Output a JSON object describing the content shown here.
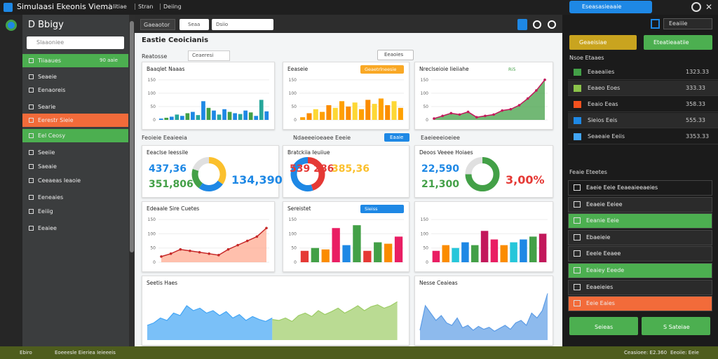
{
  "window": {
    "title": "Simulaasi Ekeonis Viema",
    "menu": [
      "Iitiae",
      "Stran",
      "Deiing"
    ],
    "account": "Eseasasieaaie"
  },
  "sidebar": {
    "title": "D Bbigy",
    "search": "Slaaoniee",
    "items": [
      {
        "label": "Tiiaaues",
        "value": "90 aaie",
        "style": "green"
      },
      {
        "label": "Seaeie",
        "style": "plain"
      },
      {
        "label": "Eenaoreis",
        "style": "plain"
      },
      {
        "label": "Searie",
        "style": "plain"
      },
      {
        "label": "Eerestr Sieie",
        "style": "orange"
      },
      {
        "label": "Eel Ceosy",
        "style": "green"
      },
      {
        "label": "Seeiie",
        "style": "plain"
      },
      {
        "label": "Saeaie",
        "style": "plain"
      },
      {
        "label": "Ceeaeas Ieaoie",
        "style": "plain"
      },
      {
        "label": "Eeneaies",
        "style": "plain"
      },
      {
        "label": "Eeiiig",
        "style": "plain"
      },
      {
        "label": "Eeaiee",
        "style": "plain"
      }
    ]
  },
  "toolbar": {
    "button": "Gaeaotor",
    "search": "Seaa",
    "dropdown": "Dsiio"
  },
  "section": {
    "title": "Eastie Ceoicianis",
    "filter": "Reatosse",
    "dropdown": "Ceaeresi",
    "button": "Eeaoies",
    "row_headers": [
      "Feoieie Eeaieeia",
      "Ndaeeeioeaee Eeeie",
      "Eaeieeeioeiee"
    ],
    "row_button": "Eaaie"
  },
  "cards": [
    {
      "title": "Baaqlet Naaas",
      "chart": {
        "type": "bar",
        "ylim": [
          0,
          160
        ],
        "yticks": [
          0,
          50,
          100,
          150
        ],
        "colors": [
          "#1e88e5",
          "#43a047",
          "#1e88e5",
          "#26a69a"
        ],
        "values": [
          5,
          8,
          12,
          20,
          15,
          25,
          30,
          18,
          70,
          45,
          35,
          20,
          40,
          30,
          25,
          22,
          35,
          28,
          15,
          75,
          32
        ]
      }
    },
    {
      "title": "Eeaseie",
      "badge": "Geaetrlneesie",
      "chart": {
        "type": "bar",
        "ylim": [
          0,
          160
        ],
        "yticks": [
          0,
          50,
          100,
          150
        ],
        "colors": [
          "#ffa000",
          "#fb8c00",
          "#fdd835"
        ],
        "values": [
          10,
          25,
          40,
          30,
          55,
          45,
          70,
          50,
          65,
          40,
          75,
          60,
          80,
          55,
          70,
          45
        ]
      }
    },
    {
      "title": "Nreclseioie Iieiiahe",
      "badge": "Ri5",
      "chart": {
        "type": "line",
        "ylim": [
          0,
          160
        ],
        "yticks": [
          0,
          50,
          100,
          150
        ],
        "color": "#c2185b",
        "fill": "#43a047",
        "values": [
          5,
          15,
          25,
          20,
          30,
          10,
          15,
          20,
          35,
          40,
          55,
          80,
          110,
          150
        ]
      }
    },
    {
      "title": "Eeaclse Ieessile",
      "kpis": [
        {
          "text": "437,36",
          "color": "#1e88e5"
        },
        {
          "text": "351,806",
          "color": "#43a047"
        },
        {
          "text": "134,390",
          "color": "#1e88e5"
        }
      ],
      "chart": {
        "type": "pie",
        "colors": [
          "#fbc02d",
          "#1e88e5",
          "#43a047",
          "#e0e0e0"
        ],
        "values": [
          35,
          25,
          20,
          20
        ]
      }
    },
    {
      "title": "Bratckiia Ieuiiue",
      "kpis": [
        {
          "text": "539 286",
          "color": "#e53935"
        },
        {
          "text": "385,36",
          "color": "#fbc02d"
        }
      ],
      "chart": {
        "type": "pie",
        "colors": [
          "#e53935",
          "#1e88e5"
        ],
        "values": [
          45,
          55
        ]
      }
    },
    {
      "title": "Deoos Veeee Hoiaes",
      "kpis": [
        {
          "text": "22,590",
          "color": "#1e88e5"
        },
        {
          "text": "21,300",
          "color": "#43a047"
        },
        {
          "text": "3,00%",
          "color": "#e53935"
        }
      ],
      "chart": {
        "type": "pie",
        "colors": [
          "#43a047",
          "#e0e0e0"
        ],
        "values": [
          75,
          25
        ]
      }
    },
    {
      "title": "Edeaale Sire Cuetes",
      "chart": {
        "type": "line",
        "ylim": [
          0,
          160
        ],
        "yticks": [
          0,
          50,
          100,
          150
        ],
        "color": "#c62828",
        "fill": "#ffab91",
        "values": [
          20,
          30,
          45,
          40,
          35,
          30,
          25,
          45,
          60,
          75,
          90,
          120
        ]
      }
    },
    {
      "title": "Sereistet",
      "badge": "Sieiss",
      "chart": {
        "type": "bar",
        "ylim": [
          0,
          160
        ],
        "yticks": [
          0,
          50,
          100,
          150
        ],
        "colors": [
          "#e53935",
          "#43a047",
          "#fb8c00",
          "#e91e63",
          "#1e88e5",
          "#43a047"
        ],
        "values": [
          40,
          50,
          45,
          120,
          60,
          130,
          40,
          70,
          65,
          90
        ]
      }
    },
    {
      "chart": {
        "type": "bar",
        "ylim": [
          0,
          160
        ],
        "yticks": [
          0,
          50,
          100,
          150
        ],
        "colors": [
          "#e91e63",
          "#fb8c00",
          "#26c6da",
          "#1e88e5",
          "#43a047",
          "#c2185b"
        ],
        "values": [
          40,
          60,
          50,
          70,
          60,
          110,
          80,
          60,
          70,
          80,
          90,
          100
        ]
      }
    },
    {
      "title": "Seetis Haes",
      "chart": {
        "type": "area",
        "ylim": [
          0,
          100
        ],
        "series": [
          {
            "color": "#42a5f5",
            "values": [
              30,
              35,
              45,
              40,
              55,
              50,
              70,
              60,
              65,
              55,
              60,
              50,
              58,
              45,
              52,
              40,
              48,
              42,
              38,
              45
            ]
          },
          {
            "color": "#9ccc65",
            "values": [
              42,
              40,
              45,
              38,
              50,
              55,
              48,
              60,
              52,
              58,
              65,
              55,
              62,
              70,
              60,
              68,
              72,
              65,
              70,
              78
            ]
          }
        ]
      }
    },
    {
      "title": "Nesse Ceaieas",
      "chart": {
        "type": "area",
        "ylim": [
          0,
          100
        ],
        "series": [
          {
            "color": "#5c9ce6",
            "values": [
              20,
              70,
              55,
              40,
              50,
              35,
              30,
              45,
              25,
              30,
              20,
              28,
              22,
              26,
              18,
              24,
              30,
              22,
              35,
              40,
              30,
              55,
              45,
              60,
              95
            ]
          }
        ]
      }
    }
  ],
  "right_panel": {
    "dropdown": "Eeaiiie",
    "buttons": [
      "Geaeisiae",
      "Eteatieaatiie"
    ],
    "list_title": "Nsoe Etaaes",
    "list": [
      {
        "label": "Eeaeaiies",
        "value": "1323.33",
        "color": "#43a047"
      },
      {
        "label": "Eeaeo Eoes",
        "value": "333.33",
        "color": "#8bc34a"
      },
      {
        "label": "Eeaio Eeas",
        "value": "358.33",
        "color": "#f4511e"
      },
      {
        "label": "Sieios Eeis",
        "value": "555.33",
        "color": "#1e88e5"
      },
      {
        "label": "Seaeaie Eeiis",
        "value": "3353.33",
        "color": "#42a5f5"
      }
    ],
    "feed_title": "Feaie Eteetes",
    "feed": [
      {
        "label": "Eaeie Eeie Eeaeaieeaeies",
        "style": "outline"
      },
      {
        "label": "Eeaeie Eeiee",
        "style": "dark"
      },
      {
        "label": "Eeanie Eeie",
        "style": "green"
      },
      {
        "label": "Ebaeieie",
        "style": "dark"
      },
      {
        "label": "Eeele Eeaee",
        "style": "dark"
      },
      {
        "label": "Eeaiey Eeede",
        "style": "green"
      },
      {
        "label": "Eeaeieies",
        "style": "dark"
      },
      {
        "label": "Eeie Eaies",
        "style": "orange"
      }
    ],
    "actions": [
      "Seieas",
      "S Sateiae"
    ]
  },
  "status": {
    "left": "Ebiro",
    "center": "Eoeeesle Eieriea Ieieeeis",
    "right": [
      "Ceasioee: E2.360",
      "Eeoiie: Eeie"
    ]
  }
}
